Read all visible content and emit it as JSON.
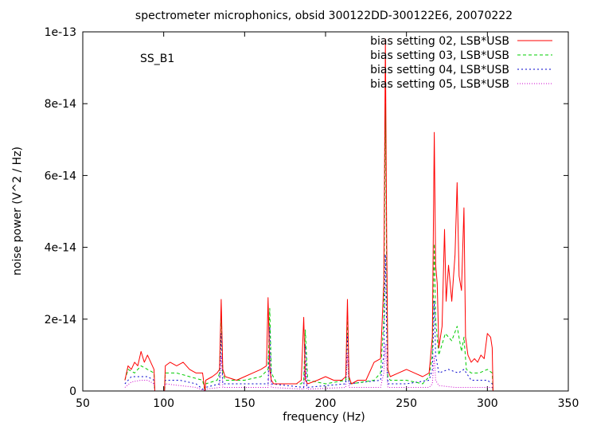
{
  "chart_data": {
    "type": "line",
    "title": "spectrometer microphonics, obsid 300122DD-300122E6, 20070222",
    "annotation": "SS_B1",
    "xlabel": "frequency (Hz)",
    "ylabel": "noise power (V^2 / Hz)",
    "xlim": [
      50,
      350
    ],
    "ylim": [
      0,
      1e-13
    ],
    "xticks": [
      50,
      100,
      150,
      200,
      250,
      300,
      350
    ],
    "xtick_labels": [
      "50",
      "100",
      "150",
      "200",
      "250",
      "300",
      "350"
    ],
    "yticks": [
      0,
      2e-14,
      4e-14,
      6e-14,
      8e-14,
      1e-13
    ],
    "ytick_labels": [
      "0",
      "2e-14",
      "4e-14",
      "6e-14",
      "8e-14",
      "1e-13"
    ],
    "legend_position": "top-right",
    "series": [
      {
        "name": "bias setting 02, LSB*USB",
        "color": "#ff0000",
        "dash": "",
        "x": [
          76,
          78,
          80,
          82,
          84,
          86,
          88,
          90,
          92,
          94,
          94.5,
          100.5,
          101,
          104,
          108,
          112,
          116,
          120,
          124,
          125.5,
          126,
          130,
          133,
          134.5,
          135.5,
          136.5,
          138,
          145,
          150,
          155,
          160,
          163.5,
          164.5,
          165.5,
          166.5,
          168,
          175,
          182,
          185,
          186.5,
          187.5,
          189,
          195,
          200,
          205,
          210,
          212.5,
          213.5,
          214.5,
          216,
          220,
          225,
          230,
          234,
          236,
          237,
          237.8,
          238.5,
          240,
          245,
          250,
          255,
          260,
          264,
          266,
          267.2,
          268,
          269,
          270,
          272,
          273.5,
          274.5,
          276,
          278,
          280,
          281.3,
          282.5,
          284,
          285.5,
          286.5,
          288,
          290,
          292,
          294,
          296,
          298,
          300,
          302,
          303,
          303.5
        ],
        "y": [
          3e-15,
          7e-15,
          6e-15,
          8e-15,
          7e-15,
          1.1e-14,
          8e-15,
          1e-14,
          8e-15,
          6e-15,
          0,
          0,
          7e-15,
          8e-15,
          7e-15,
          8e-15,
          6e-15,
          5e-15,
          5e-15,
          0,
          3e-15,
          4e-15,
          5e-15,
          6e-15,
          2.55e-14,
          6e-15,
          4e-15,
          3e-15,
          4e-15,
          5e-15,
          6e-15,
          7e-15,
          2.6e-14,
          6e-15,
          3e-15,
          2e-15,
          2e-15,
          2e-15,
          3e-15,
          2.05e-14,
          3e-15,
          2e-15,
          3e-15,
          4e-15,
          3e-15,
          3e-15,
          4e-15,
          2.55e-14,
          4e-15,
          2e-15,
          3e-15,
          3e-15,
          8e-15,
          9e-15,
          3e-14,
          9.8e-14,
          4e-14,
          6e-15,
          4e-15,
          5e-15,
          6e-15,
          5e-15,
          4e-15,
          5e-15,
          1.5e-14,
          7.2e-14,
          3.5e-14,
          3e-14,
          1.2e-14,
          1.8e-14,
          4.5e-14,
          2.5e-14,
          3.5e-14,
          2.5e-14,
          3.8e-14,
          5.8e-14,
          3.2e-14,
          2.8e-14,
          5.1e-14,
          1.5e-14,
          1e-14,
          8e-15,
          9e-15,
          8e-15,
          1e-14,
          9e-15,
          1.6e-14,
          1.5e-14,
          1.2e-14,
          0
        ]
      },
      {
        "name": "bias setting 03, LSB*USB",
        "color": "#00cc00",
        "dash": "4,3",
        "x": [
          76,
          78,
          82,
          86,
          90,
          94,
          94.5,
          100.5,
          101,
          108,
          116,
          124,
          125.5,
          126,
          133,
          134.5,
          135.5,
          136.5,
          138,
          150,
          160,
          164.5,
          165.5,
          166.5,
          170,
          185,
          186.5,
          187.5,
          189,
          200,
          212.5,
          213.5,
          214.5,
          216,
          230,
          234,
          236,
          237,
          237.8,
          238.5,
          240,
          250,
          260,
          264,
          266,
          267.2,
          268,
          270,
          274,
          278,
          281.3,
          284,
          285.5,
          287,
          290,
          295,
          300,
          303,
          303.5
        ],
        "y": [
          3e-15,
          6e-15,
          5e-15,
          7e-15,
          6e-15,
          5e-15,
          0,
          0,
          5e-15,
          5e-15,
          4e-15,
          3e-15,
          0,
          2e-15,
          3e-15,
          5e-15,
          2.2e-14,
          5e-15,
          3e-15,
          3e-15,
          4e-15,
          6e-15,
          2.3e-14,
          5e-15,
          2e-15,
          2e-15,
          3e-15,
          1.7e-14,
          3e-15,
          2e-15,
          3e-15,
          2.2e-14,
          3e-15,
          2e-15,
          3e-15,
          5e-15,
          2e-14,
          8e-14,
          2.8e-14,
          4e-15,
          3e-15,
          3e-15,
          2e-15,
          4e-15,
          1e-14,
          4.1e-14,
          2e-14,
          1e-14,
          1.6e-14,
          1.4e-14,
          1.8e-14,
          1.1e-14,
          1.5e-14,
          6e-15,
          5e-15,
          5e-15,
          6e-15,
          5e-15,
          0
        ]
      },
      {
        "name": "bias setting 04, LSB*USB",
        "color": "#0000cc",
        "dash": "2,3",
        "x": [
          76,
          80,
          86,
          90,
          94,
          94.5,
          100.5,
          101,
          110,
          120,
          125.5,
          126,
          134.5,
          135.5,
          136.5,
          150,
          164.5,
          165.5,
          166.5,
          186.5,
          187.5,
          188.5,
          212.5,
          213.5,
          214.5,
          234,
          236,
          237,
          237.8,
          238.5,
          250,
          264,
          266,
          267.2,
          268,
          270,
          276,
          282,
          285.5,
          290,
          300,
          303,
          303.5
        ],
        "y": [
          2e-15,
          4e-15,
          4e-15,
          4e-15,
          3e-15,
          0,
          0,
          3e-15,
          3e-15,
          2e-15,
          0,
          1e-15,
          2e-15,
          1.6e-14,
          2e-15,
          2e-15,
          2e-15,
          1.8e-14,
          2e-15,
          1e-15,
          1.3e-14,
          1e-15,
          2e-15,
          1.6e-14,
          2e-15,
          3e-15,
          1e-14,
          3.8e-14,
          1.5e-14,
          2e-15,
          2e-15,
          3e-15,
          6e-15,
          2.5e-14,
          1e-14,
          5e-15,
          6e-15,
          5e-15,
          6e-15,
          3e-15,
          3e-15,
          2e-15,
          0
        ]
      },
      {
        "name": "bias setting 05, LSB*USB",
        "color": "#cc00cc",
        "dash": "1,2",
        "x": [
          76,
          80,
          86,
          90,
          94,
          94.5,
          100.5,
          101,
          110,
          120,
          125.5,
          126,
          134.5,
          135.5,
          136.5,
          150,
          164.5,
          165.5,
          166.5,
          186.5,
          187.5,
          188.5,
          212.5,
          213.5,
          214.5,
          234,
          236,
          237,
          237.8,
          238.5,
          250,
          264,
          266,
          267.2,
          268,
          270,
          280,
          290,
          300,
          303,
          303.5
        ],
        "y": [
          1e-15,
          2.5e-15,
          3e-15,
          3e-15,
          2e-15,
          0,
          0,
          2e-15,
          1.5e-15,
          1e-15,
          0,
          5e-16,
          1e-15,
          1e-14,
          1e-15,
          1e-15,
          1e-15,
          1.1e-14,
          1e-15,
          5e-16,
          8e-15,
          5e-16,
          1e-15,
          1e-14,
          1e-15,
          1e-15,
          5e-15,
          1.3e-14,
          6e-15,
          1e-15,
          1e-15,
          1e-15,
          2e-15,
          1e-14,
          3e-15,
          1.5e-15,
          1e-15,
          1e-15,
          1e-15,
          1e-15,
          0
        ]
      }
    ]
  }
}
